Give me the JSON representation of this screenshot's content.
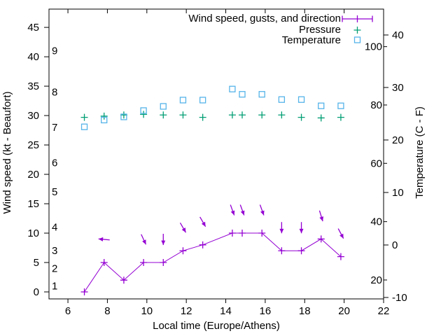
{
  "chart_data": {
    "type": "line",
    "title": "",
    "xlabel": "Local time (Europe/Athens)",
    "ylabel_left": "Wind speed (kt - Beaufort)",
    "ylabel_right": "Temperature (C - F)",
    "legend_position": "top-right-inside",
    "grid": false,
    "legend": [
      {
        "label": "Wind speed, gusts, and direction",
        "marker": "errorbar-line-plus",
        "color": "#9400d3"
      },
      {
        "label": "Pressure",
        "marker": "plus",
        "color": "#009e73"
      },
      {
        "label": "Temperature",
        "marker": "open-square",
        "color": "#56b4e9"
      }
    ],
    "x": [
      6.833,
      7.833,
      8.833,
      9.833,
      10.833,
      11.833,
      12.833,
      14.333,
      14.833,
      15.833,
      16.833,
      17.833,
      18.833,
      19.833
    ],
    "series": [
      {
        "name": "wind_speed",
        "axis": "left_kt",
        "style": "line+plus",
        "color": "#9400d3",
        "values": [
          0,
          5,
          2,
          5,
          5,
          7,
          8,
          10,
          10,
          10,
          7,
          7,
          9,
          6
        ]
      },
      {
        "name": "wind_direction_arrows",
        "style": "arrows",
        "color": "#9400d3",
        "note": "screen-pointing angle, degrees clockwise from up; null = no arrow (calm)",
        "values": [
          null,
          275,
          null,
          155,
          180,
          150,
          150,
          160,
          160,
          160,
          180,
          180,
          163,
          152
        ]
      },
      {
        "name": "pressure",
        "axis": "left_kt",
        "style": "plus",
        "color": "#009e73",
        "note": "no visible pressure scale; values read as positions on the left-axis number scale",
        "values": [
          29.7,
          29.9,
          30.1,
          30.2,
          30.1,
          30.1,
          29.7,
          30.1,
          30.1,
          30.1,
          30.1,
          29.7,
          29.6,
          29.7
        ]
      },
      {
        "name": "temperature_c",
        "axis": "right_c",
        "style": "open-square",
        "color": "#56b4e9",
        "values": [
          22.5,
          23.8,
          24.4,
          25.6,
          26.4,
          27.6,
          27.6,
          29.7,
          28.7,
          28.7,
          27.7,
          27.7,
          26.5,
          26.5
        ]
      }
    ],
    "axes": {
      "x": {
        "range": [
          5.04,
          22
        ],
        "ticks": [
          6,
          8,
          10,
          12,
          14,
          16,
          18,
          20,
          22
        ]
      },
      "left_kt": {
        "range": [
          -1.19,
          48.11
        ],
        "ticks": [
          0,
          5,
          10,
          15,
          20,
          25,
          30,
          35,
          40,
          45
        ]
      },
      "left_beaufort": {
        "labels": [
          "1",
          "2",
          "3",
          "4",
          "5",
          "6",
          "7",
          "8",
          "9"
        ],
        "at_kt": [
          1,
          4,
          7,
          11,
          17,
          22,
          28,
          34,
          41
        ]
      },
      "right_c": {
        "range": [
          -10.27,
          44.93
        ],
        "ticks": [
          -10,
          0,
          10,
          20,
          30,
          40
        ]
      },
      "right_f": {
        "labels": [
          20,
          40,
          60,
          80,
          100
        ]
      }
    }
  },
  "colors": {
    "wind": "#9400d3",
    "pressure": "#009e73",
    "temperature": "#56b4e9",
    "axis": "#000000",
    "background": "#ffffff"
  }
}
